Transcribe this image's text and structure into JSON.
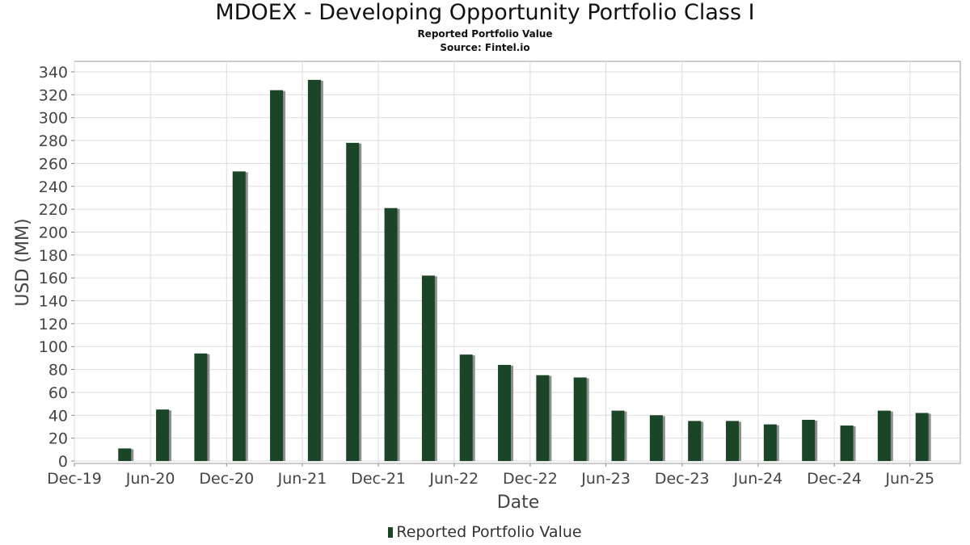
{
  "chart_data": {
    "type": "bar",
    "title": "MDOEX - Developing Opportunity Portfolio Class I",
    "subtitle": "Reported Portfolio Value",
    "source": "Source: Fintel.io",
    "xlabel": "Date",
    "ylabel": "USD (MM)",
    "ylim": [
      0,
      345
    ],
    "yticks": [
      0,
      20,
      40,
      60,
      80,
      100,
      120,
      140,
      160,
      180,
      200,
      220,
      240,
      260,
      280,
      300,
      320,
      340
    ],
    "xlim": [
      "2019-12-01",
      "2025-09-30"
    ],
    "xticks": [
      {
        "date": "2019-12-01",
        "label": "Dec-19"
      },
      {
        "date": "2020-06-01",
        "label": "Jun-20"
      },
      {
        "date": "2020-12-01",
        "label": "Dec-20"
      },
      {
        "date": "2021-06-01",
        "label": "Jun-21"
      },
      {
        "date": "2021-12-01",
        "label": "Dec-21"
      },
      {
        "date": "2022-06-01",
        "label": "Jun-22"
      },
      {
        "date": "2022-12-01",
        "label": "Dec-22"
      },
      {
        "date": "2023-06-01",
        "label": "Jun-23"
      },
      {
        "date": "2023-12-01",
        "label": "Dec-23"
      },
      {
        "date": "2024-06-01",
        "label": "Jun-24"
      },
      {
        "date": "2024-12-01",
        "label": "Dec-24"
      },
      {
        "date": "2025-06-01",
        "label": "Jun-25"
      }
    ],
    "grid": true,
    "legend_position": "bottom",
    "series": [
      {
        "name": "Reported Portfolio Value",
        "color": "#1a4526",
        "x": [
          "2020-03-31",
          "2020-06-30",
          "2020-09-30",
          "2020-12-31",
          "2021-03-31",
          "2021-06-30",
          "2021-09-30",
          "2021-12-31",
          "2022-03-31",
          "2022-06-30",
          "2022-09-30",
          "2022-12-31",
          "2023-03-31",
          "2023-06-30",
          "2023-09-30",
          "2023-12-31",
          "2024-03-31",
          "2024-06-30",
          "2024-09-30",
          "2024-12-31",
          "2025-03-31",
          "2025-06-30"
        ],
        "values": [
          11,
          45,
          94,
          253,
          324,
          333,
          278,
          221,
          162,
          93,
          84,
          75,
          73,
          44,
          40,
          35,
          35,
          32,
          36,
          31,
          44,
          42
        ]
      }
    ]
  }
}
